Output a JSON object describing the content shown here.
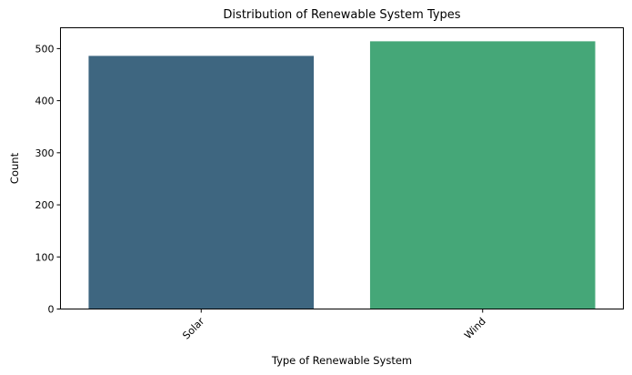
{
  "chart_data": {
    "type": "bar",
    "title": "Distribution of Renewable System Types",
    "xlabel": "Type of Renewable System",
    "ylabel": "Count",
    "categories": [
      "Solar",
      "Wind"
    ],
    "values": [
      486,
      514
    ],
    "ylim": [
      0,
      540
    ],
    "yticks": [
      0,
      100,
      200,
      300,
      400,
      500
    ],
    "colors": [
      "#3e6680",
      "#45a778"
    ],
    "grid": false,
    "legend": "none",
    "x_tick_rotation": -45
  }
}
